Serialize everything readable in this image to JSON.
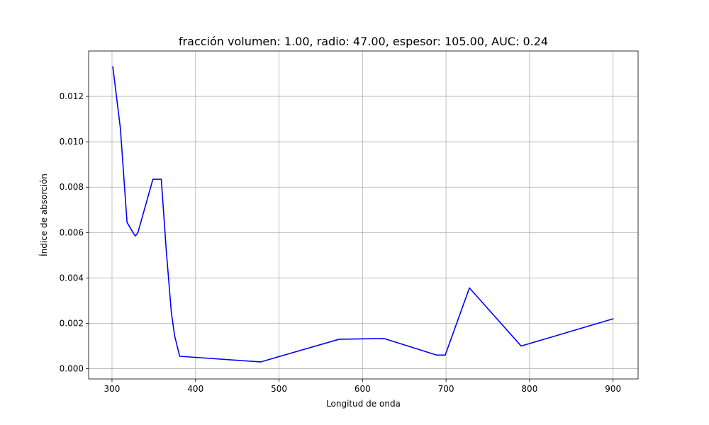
{
  "chart_data": {
    "type": "line",
    "title": "fracción volumen: 1.00, radio: 47.00, espesor: 105.00, AUC: 0.24",
    "xlabel": "Longitud de onda",
    "ylabel": "Índice de absorción",
    "xlim": [
      272,
      930
    ],
    "ylim": [
      -0.00045,
      0.014
    ],
    "grid": true,
    "x_ticks": [
      300,
      400,
      500,
      600,
      700,
      800,
      900
    ],
    "x_tick_labels": [
      "300",
      "400",
      "500",
      "600",
      "700",
      "800",
      "900"
    ],
    "y_ticks": [
      0.0,
      0.002,
      0.004,
      0.006,
      0.008,
      0.01,
      0.012
    ],
    "y_tick_labels": [
      "0.000",
      "0.002",
      "0.004",
      "0.006",
      "0.008",
      "0.010",
      "0.012"
    ],
    "series": [
      {
        "color": "#0000ff",
        "x": [
          301,
          310,
          318,
          326,
          328,
          331,
          349,
          359,
          365,
          371,
          375,
          381,
          478,
          572,
          626,
          689,
          699,
          728,
          790,
          900
        ],
        "y": [
          0.0133,
          0.0106,
          0.00645,
          0.00595,
          0.00585,
          0.006,
          0.00835,
          0.00835,
          0.0052,
          0.0025,
          0.00145,
          0.00055,
          0.0003,
          0.0013,
          0.00133,
          0.0006,
          0.0006,
          0.00356,
          0.001,
          0.0022
        ]
      }
    ]
  }
}
